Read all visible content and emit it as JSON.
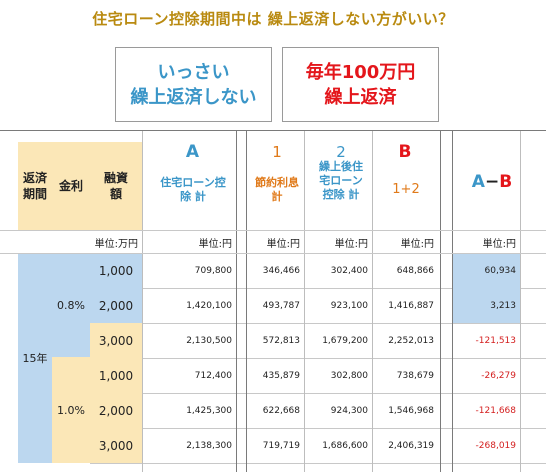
{
  "title": "住宅ローン控除期間中は 繰上返済しない方がいい？",
  "options": {
    "a_line1": "いっさい",
    "a_line2": "繰上返済しない",
    "b_line1": "毎年100万円",
    "b_line2": "繰上返済"
  },
  "headers": {
    "period": "返済期間",
    "rate": "金利",
    "financing": "融資額",
    "col_a_letter": "A",
    "col_a_label": "住宅ローン控除 計",
    "col_1_letter": "1",
    "col_1_label": "節約利息 計",
    "col_2_letter": "2",
    "col_2_label": "繰上後住宅ローン控除 計",
    "col_b_letter": "B",
    "col_b_label": "1+2",
    "col_diff_a": "A",
    "col_diff_dash": "−",
    "col_diff_b": "B"
  },
  "units": {
    "man_yen": "単位:万円",
    "yen": "単位:円"
  },
  "period_label": "15年",
  "rates": [
    "0.8%",
    "1.0%"
  ],
  "rows": [
    {
      "amount": "1,000",
      "a": "709,800",
      "c1": "346,466",
      "c2": "302,400",
      "b": "648,866",
      "diff": "60,934"
    },
    {
      "amount": "2,000",
      "a": "1,420,100",
      "c1": "493,787",
      "c2": "923,100",
      "b": "1,416,887",
      "diff": "3,213"
    },
    {
      "amount": "3,000",
      "a": "2,130,500",
      "c1": "572,813",
      "c2": "1,679,200",
      "b": "2,252,013",
      "diff": "-121,513"
    },
    {
      "amount": "1,000",
      "a": "712,400",
      "c1": "435,879",
      "c2": "302,800",
      "b": "738,679",
      "diff": "-26,279"
    },
    {
      "amount": "2,000",
      "a": "1,425,300",
      "c1": "622,668",
      "c2": "924,300",
      "b": "1,546,968",
      "diff": "-121,668"
    },
    {
      "amount": "3,000",
      "a": "2,138,300",
      "c1": "719,719",
      "c2": "1,686,600",
      "b": "2,406,319",
      "diff": "-268,019"
    }
  ],
  "colors": {
    "title": "#b98a10",
    "blue_text": "#3b96c8",
    "red_text": "#e4161b",
    "orange_text": "#e07a1a",
    "header_bg": "#fbe7b7",
    "blue_bg": "#bcd7ef",
    "negative": "#d42020"
  }
}
